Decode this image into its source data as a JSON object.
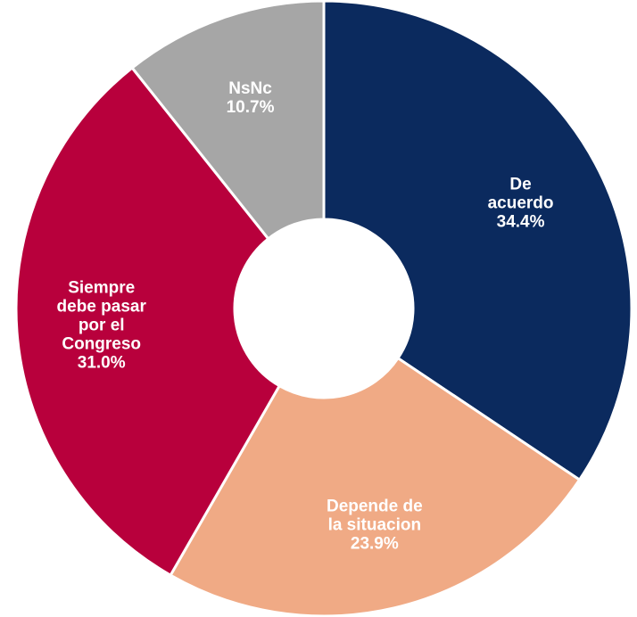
{
  "chart_data": {
    "type": "donut",
    "categories": [
      "De acuerdo",
      "Depende de la situacion",
      "Siempre debe pasar por el Congreso",
      "NsNc"
    ],
    "values": [
      34.4,
      23.9,
      31.0,
      10.7
    ],
    "value_labels": [
      "34.4%",
      "23.9%",
      "31.0%",
      "10.7%"
    ],
    "colors": [
      "#0b2a5e",
      "#f0aa85",
      "#b8003c",
      "#a6a6a6"
    ]
  }
}
